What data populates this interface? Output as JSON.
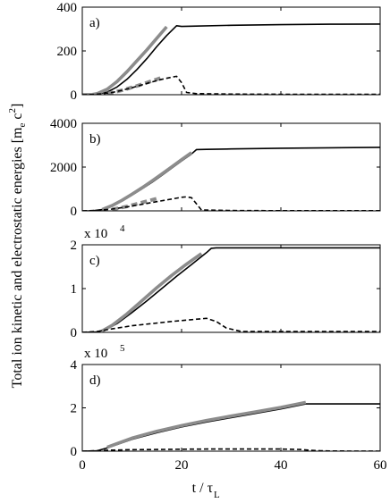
{
  "ylabel": {
    "main": "Total ion kinetic and electrostatic energies [m",
    "sub_e": "e",
    "unit_c": " c",
    "sup_2": "2",
    "close": "]"
  },
  "xlabel": {
    "main": "t / τ",
    "sub": "L"
  },
  "colors": {
    "total": "#000000",
    "fit": "#8c8c8c",
    "electrostatic": "#000000"
  },
  "chart_data": [
    {
      "type": "line",
      "panel_label": "a)",
      "multiplier": {
        "base": "",
        "exp": ""
      },
      "xlim": [
        0,
        60
      ],
      "ylim": [
        0,
        400
      ],
      "xticks": [
        "0",
        "20",
        "40",
        "60"
      ],
      "yticks": [
        "0",
        "200",
        "400"
      ],
      "show_xticklabels": false,
      "series": [
        {
          "style": "solid",
          "x": [
            0,
            2,
            3,
            5,
            7,
            9,
            11,
            13,
            15,
            17,
            19,
            20,
            22,
            30,
            40,
            50,
            60
          ],
          "y": [
            0,
            1,
            3,
            12,
            35,
            70,
            115,
            165,
            220,
            270,
            315,
            312,
            313,
            317,
            320,
            322,
            323
          ]
        },
        {
          "style": "gray",
          "x": [
            0,
            2,
            3,
            5,
            7,
            9,
            11,
            13,
            15,
            17
          ],
          "y": [
            0,
            1,
            5,
            25,
            60,
            105,
            155,
            205,
            258,
            310
          ]
        },
        {
          "style": "grayDash",
          "x": [
            5,
            8,
            11,
            13,
            15,
            16
          ],
          "y": [
            5,
            20,
            40,
            55,
            70,
            78
          ]
        },
        {
          "style": "dashed",
          "x": [
            0,
            2,
            4,
            6,
            8,
            10,
            12,
            14,
            16,
            18,
            19,
            20,
            21,
            23,
            26,
            30,
            40,
            50,
            60
          ],
          "y": [
            0,
            1,
            4,
            10,
            20,
            32,
            45,
            58,
            70,
            80,
            84,
            55,
            10,
            5,
            4,
            3,
            2,
            2,
            2
          ]
        }
      ]
    },
    {
      "type": "line",
      "panel_label": "b)",
      "multiplier": {
        "base": "",
        "exp": ""
      },
      "xlim": [
        0,
        60
      ],
      "ylim": [
        0,
        4000
      ],
      "xticks": [
        "0",
        "20",
        "40",
        "60"
      ],
      "yticks": [
        "0",
        "2000",
        "4000"
      ],
      "show_xticklabels": false,
      "series": [
        {
          "style": "solid",
          "x": [
            0,
            2,
            4,
            6,
            8,
            10,
            12,
            14,
            16,
            18,
            20,
            22,
            23,
            25,
            30,
            40,
            50,
            60
          ],
          "y": [
            0,
            5,
            60,
            220,
            450,
            720,
            1000,
            1300,
            1620,
            1950,
            2280,
            2600,
            2800,
            2810,
            2830,
            2860,
            2880,
            2900
          ]
        },
        {
          "style": "gray",
          "x": [
            4,
            6,
            8,
            10,
            12,
            14,
            16,
            18,
            20,
            22
          ],
          "y": [
            60,
            240,
            480,
            760,
            1050,
            1360,
            1680,
            2010,
            2340,
            2660
          ]
        },
        {
          "style": "grayDash",
          "x": [
            6,
            9,
            12,
            14,
            15
          ],
          "y": [
            60,
            200,
            380,
            500,
            560
          ]
        },
        {
          "style": "dashed",
          "x": [
            0,
            3,
            6,
            9,
            12,
            15,
            18,
            20,
            21,
            22,
            24,
            30,
            40,
            50,
            60
          ],
          "y": [
            0,
            20,
            80,
            180,
            300,
            420,
            540,
            620,
            640,
            600,
            40,
            15,
            10,
            10,
            10
          ]
        }
      ]
    },
    {
      "type": "line",
      "panel_label": "c)",
      "multiplier": {
        "base": "x 10",
        "exp": "4"
      },
      "xlim": [
        0,
        60
      ],
      "ylim": [
        0,
        2
      ],
      "xticks": [
        "0",
        "20",
        "40",
        "60"
      ],
      "yticks": [
        "0",
        "1",
        "2"
      ],
      "show_xticklabels": false,
      "series": [
        {
          "style": "solid",
          "x": [
            0,
            3,
            5,
            7,
            10,
            13,
            16,
            19,
            22,
            25,
            26,
            27,
            30,
            40,
            50,
            60
          ],
          "y": [
            0,
            0.01,
            0.08,
            0.2,
            0.45,
            0.72,
            1.0,
            1.28,
            1.55,
            1.82,
            1.92,
            1.93,
            1.93,
            1.93,
            1.93,
            1.93
          ]
        },
        {
          "style": "gray",
          "x": [
            4,
            6,
            9,
            12,
            15,
            18,
            21,
            24
          ],
          "y": [
            0.03,
            0.16,
            0.42,
            0.72,
            1.02,
            1.3,
            1.56,
            1.8
          ]
        },
        {
          "style": "dashed",
          "x": [
            0,
            3,
            6,
            10,
            14,
            18,
            22,
            25,
            27,
            29,
            32,
            40,
            50,
            60
          ],
          "y": [
            0,
            0.02,
            0.08,
            0.15,
            0.2,
            0.25,
            0.29,
            0.32,
            0.25,
            0.1,
            0.02,
            0.02,
            0.02,
            0.02
          ]
        }
      ]
    },
    {
      "type": "line",
      "panel_label": "d)",
      "multiplier": {
        "base": "x 10",
        "exp": "5"
      },
      "xlim": [
        0,
        60
      ],
      "ylim": [
        0,
        4
      ],
      "xticks": [
        "0",
        "20",
        "40",
        "60"
      ],
      "yticks": [
        "0",
        "2",
        "4"
      ],
      "show_xticklabels": true,
      "series": [
        {
          "style": "solid",
          "x": [
            0,
            3,
            5,
            10,
            15,
            20,
            25,
            30,
            35,
            40,
            45,
            46,
            50,
            55,
            60
          ],
          "y": [
            0,
            0.02,
            0.15,
            0.55,
            0.85,
            1.12,
            1.35,
            1.55,
            1.75,
            1.95,
            2.18,
            2.18,
            2.18,
            2.18,
            2.18
          ]
        },
        {
          "style": "gray",
          "x": [
            5,
            10,
            15,
            20,
            25,
            30,
            35,
            40,
            45
          ],
          "y": [
            0.18,
            0.6,
            0.92,
            1.18,
            1.42,
            1.62,
            1.82,
            2.02,
            2.25
          ]
        },
        {
          "style": "dashed",
          "x": [
            0,
            3,
            6,
            10,
            15,
            20,
            25,
            30,
            35,
            40,
            44,
            46,
            48,
            50,
            60
          ],
          "y": [
            0,
            0.02,
            0.05,
            0.07,
            0.08,
            0.09,
            0.1,
            0.1,
            0.1,
            0.1,
            0.08,
            0.04,
            0.02,
            0.01,
            0
          ]
        }
      ]
    }
  ]
}
